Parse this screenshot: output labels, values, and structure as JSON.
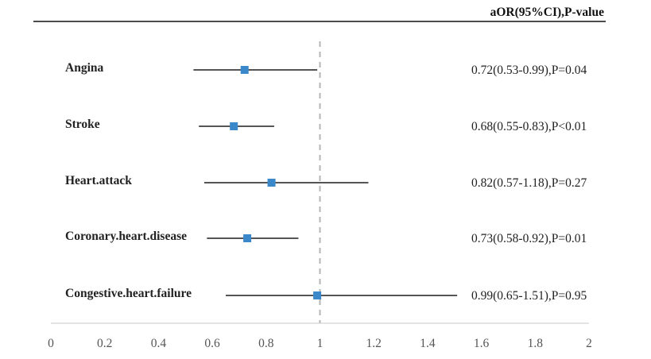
{
  "chart_data": {
    "type": "forest",
    "header": "aOR(95%CI),P-value",
    "xlim": [
      0,
      2
    ],
    "xticks": [
      "0",
      "0.2",
      "0.4",
      "0.6",
      "0.8",
      "1",
      "1.2",
      "1.4",
      "1.6",
      "1.8",
      "2"
    ],
    "reference_line": 1,
    "marker_color": "#3a87c9",
    "line_color": "#555555",
    "rows": [
      {
        "label": "Angina",
        "or": 0.72,
        "lower": 0.53,
        "upper": 0.99,
        "text": "0.72(0.53-0.99),P=0.04"
      },
      {
        "label": "Stroke",
        "or": 0.68,
        "lower": 0.55,
        "upper": 0.83,
        "text": "0.68(0.55-0.83),P<0.01"
      },
      {
        "label": "Heart.attack",
        "or": 0.82,
        "lower": 0.57,
        "upper": 1.18,
        "text": "0.82(0.57-1.18),P=0.27"
      },
      {
        "label": "Coronary.heart.disease",
        "or": 0.73,
        "lower": 0.58,
        "upper": 0.92,
        "text": "0.73(0.58-0.92),P=0.01"
      },
      {
        "label": "Congestive.heart.failure",
        "or": 0.99,
        "lower": 0.65,
        "upper": 1.51,
        "text": "0.99(0.65-1.51),P=0.95"
      }
    ]
  }
}
